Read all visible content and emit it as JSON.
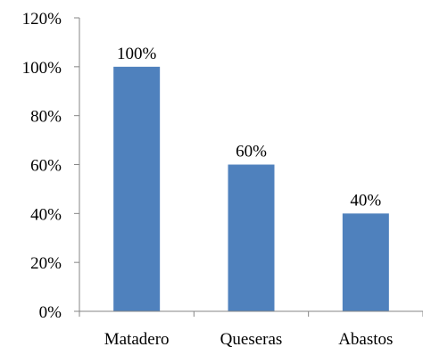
{
  "colors": {
    "bar": "#4f81bd",
    "axis": "#868686",
    "text": "#000000",
    "background": "#ffffff"
  },
  "chart_data": {
    "type": "bar",
    "categories": [
      "Matadero",
      "Queseras",
      "Abastos"
    ],
    "values": [
      100,
      60,
      40
    ],
    "data_labels": [
      "100%",
      "60%",
      "40%"
    ],
    "title": "",
    "xlabel": "",
    "ylabel": "",
    "ylim": [
      0,
      120
    ],
    "yticks": [
      0,
      20,
      40,
      60,
      80,
      100,
      120
    ],
    "ytick_labels": [
      "0%",
      "20%",
      "40%",
      "60%",
      "80%",
      "100%",
      "120%"
    ],
    "grid": false,
    "legend": "none"
  }
}
